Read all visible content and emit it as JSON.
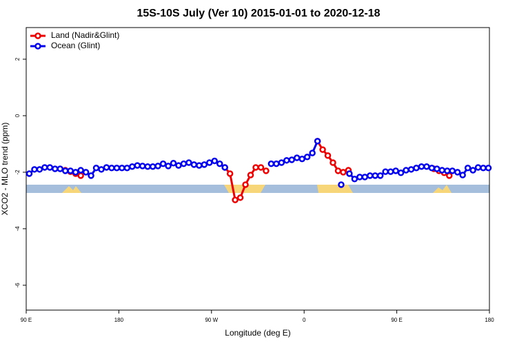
{
  "chart_data": {
    "type": "line",
    "title": "15S-10S July (Ver 10)   2015-01-01 to 2020-12-18",
    "x_label": "Longitude (deg E)",
    "y_label": "XCO2 - MLO trend (ppm)",
    "xlim": [
      90,
      540
    ],
    "xticks": [
      {
        "value": 90,
        "label": "90 E"
      },
      {
        "value": 180,
        "label": "180"
      },
      {
        "value": 270,
        "label": "90 W"
      },
      {
        "value": 360,
        "label": "0"
      },
      {
        "value": 450,
        "label": "90 E"
      },
      {
        "value": 540,
        "label": "180"
      }
    ],
    "ylim": [
      -6.88,
      3.12
    ],
    "yticks": [
      2,
      0,
      -2,
      -4,
      -6
    ],
    "legend": "top-left",
    "series": [
      {
        "name": "Land (Nadir&Glint)",
        "color": "#ee0000",
        "x": [
          128,
          133,
          138,
          143,
          150,
          283,
          288,
          293,
          298,
          303,
          308,
          313,
          318,
          323,
          345,
          373,
          378,
          383,
          388,
          393,
          398,
          403,
          420,
          486,
          491,
          496,
          501
        ],
        "values": [
          -1.93,
          -1.98,
          -2.05,
          -2.12,
          null,
          -1.83,
          -2.05,
          -2.98,
          -2.9,
          -2.44,
          -2.1,
          -1.83,
          -1.83,
          -1.95,
          null,
          -0.9,
          -1.2,
          -1.41,
          -1.66,
          -1.95,
          -2.0,
          -1.93,
          null,
          -1.88,
          -1.95,
          -2.02,
          -2.12
        ]
      },
      {
        "name": "Ocean (Glint)",
        "color": "#0000ee",
        "x": [
          93,
          98,
          103,
          108,
          113,
          118,
          123,
          128,
          133,
          138,
          143,
          148,
          153,
          158,
          163,
          168,
          173,
          178,
          183,
          188,
          193,
          198,
          203,
          208,
          213,
          218,
          223,
          228,
          233,
          238,
          243,
          248,
          253,
          258,
          263,
          268,
          273,
          278,
          283,
          300,
          328,
          333,
          338,
          343,
          348,
          353,
          358,
          363,
          368,
          373,
          385,
          396,
          400,
          404,
          409,
          414,
          419,
          424,
          429,
          434,
          439,
          444,
          449,
          454,
          459,
          464,
          469,
          474,
          479,
          484,
          489,
          494,
          499,
          504,
          509,
          514,
          519,
          524,
          529,
          534,
          539
        ],
        "values": [
          -2.05,
          -1.9,
          -1.9,
          -1.83,
          -1.83,
          -1.88,
          -1.88,
          -1.95,
          -1.95,
          -2.0,
          -1.93,
          -2.0,
          -2.12,
          -1.85,
          -1.9,
          -1.83,
          -1.85,
          -1.85,
          -1.85,
          -1.85,
          -1.8,
          -1.76,
          -1.78,
          -1.8,
          -1.8,
          -1.78,
          -1.7,
          -1.78,
          -1.68,
          -1.76,
          -1.7,
          -1.66,
          -1.73,
          -1.76,
          -1.73,
          -1.66,
          -1.6,
          -1.7,
          -1.83,
          null,
          -1.7,
          -1.7,
          -1.66,
          -1.58,
          -1.56,
          -1.49,
          -1.53,
          -1.46,
          -1.32,
          -0.9,
          null,
          -2.44,
          null,
          -2.05,
          -2.24,
          -2.17,
          -2.17,
          -2.12,
          -2.12,
          -2.12,
          -1.98,
          -1.98,
          -1.95,
          -2.02,
          -1.93,
          -1.9,
          -1.85,
          -1.8,
          -1.8,
          -1.85,
          -1.88,
          -1.93,
          -1.95,
          -1.95,
          -2.0,
          -2.1,
          -1.85,
          -1.93,
          -1.83,
          -1.85,
          -1.85
        ]
      }
    ]
  }
}
